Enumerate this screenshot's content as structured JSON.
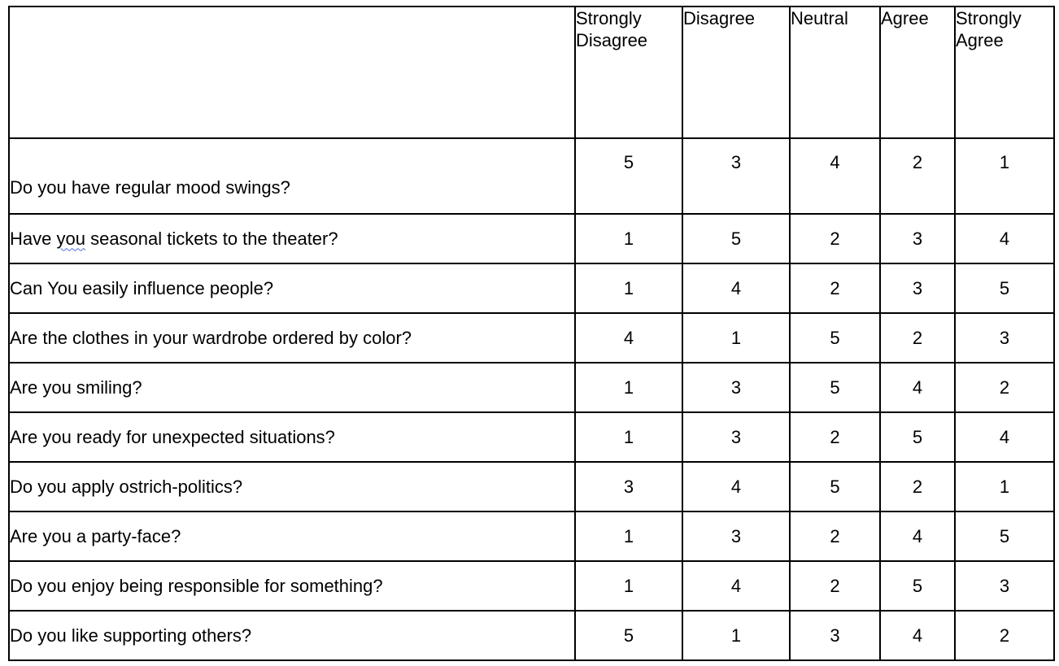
{
  "header": {
    "columns": [
      "Strongly\nDisagree",
      "Disagree",
      "Neutral",
      "Agree",
      "Strongly\nAgree"
    ]
  },
  "rows": [
    {
      "question": "Do you have regular mood swings?",
      "values": [
        "5",
        "3",
        "4",
        "2",
        "1"
      ]
    },
    {
      "question_before": "Have ",
      "question_flagged": "you",
      "question_after": " seasonal tickets to the theater?",
      "values": [
        "1",
        "5",
        "2",
        "3",
        "4"
      ]
    },
    {
      "question": "Can You easily influence people?",
      "values": [
        "1",
        "4",
        "2",
        "3",
        "5"
      ]
    },
    {
      "question": "Are the clothes in your wardrobe ordered by color?",
      "values": [
        "4",
        "1",
        "5",
        "2",
        "3"
      ]
    },
    {
      "question": "Are you smiling?",
      "values": [
        "1",
        "3",
        "5",
        "4",
        "2"
      ]
    },
    {
      "question": "Are you ready for unexpected situations?",
      "values": [
        "1",
        "3",
        "2",
        "5",
        "4"
      ]
    },
    {
      "question": "Do you apply ostrich-politics?",
      "values": [
        "3",
        "4",
        "5",
        "2",
        "1"
      ]
    },
    {
      "question": "Are you a party-face?",
      "values": [
        "1",
        "3",
        "2",
        "4",
        "5"
      ]
    },
    {
      "question": "Do you enjoy being responsible for something?",
      "values": [
        "1",
        "4",
        "2",
        "5",
        "3"
      ]
    },
    {
      "question": "Do you like supporting others?",
      "values": [
        "5",
        "1",
        "3",
        "4",
        "2"
      ]
    }
  ],
  "colors": {
    "border": "#000000",
    "text": "#000000",
    "spellcheck_underline": "#4a6fd8"
  }
}
